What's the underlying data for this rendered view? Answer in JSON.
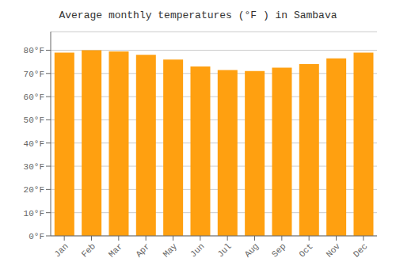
{
  "chart_data": {
    "type": "bar",
    "title": "Average monthly temperatures (°F ) in Sambava",
    "categories": [
      "Jan",
      "Feb",
      "Mar",
      "Apr",
      "May",
      "Jun",
      "Jul",
      "Aug",
      "Sep",
      "Oct",
      "Nov",
      "Dec"
    ],
    "values": [
      79,
      80,
      79.5,
      78,
      76,
      73,
      71.5,
      71,
      72.5,
      74,
      76.5,
      79
    ],
    "color": "#FFA010",
    "ylim": [
      0,
      88
    ],
    "yticks": [
      {
        "value": 0,
        "label": "0°F"
      },
      {
        "value": 10,
        "label": "10°F"
      },
      {
        "value": 20,
        "label": "20°F"
      },
      {
        "value": 30,
        "label": "30°F"
      },
      {
        "value": 40,
        "label": "40°F"
      },
      {
        "value": 50,
        "label": "50°F"
      },
      {
        "value": 60,
        "label": "60°F"
      },
      {
        "value": 70,
        "label": "70°F"
      },
      {
        "value": 80,
        "label": "80°F"
      }
    ],
    "grid": true
  }
}
